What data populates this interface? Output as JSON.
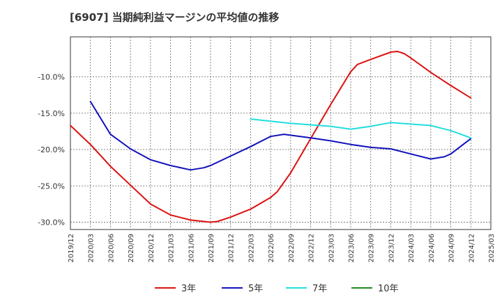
{
  "chart_data": {
    "type": "line",
    "title": "[6907]  当期純利益マージンの平均値の推移",
    "xlabel": "",
    "ylabel": "",
    "x_ticks": [
      "2019/12",
      "2020/03",
      "2020/06",
      "2020/09",
      "2020/12",
      "2021/03",
      "2021/06",
      "2021/09",
      "2021/12",
      "2022/03",
      "2022/06",
      "2022/09",
      "2022/12",
      "2023/03",
      "2023/06",
      "2023/09",
      "2023/12",
      "2024/03",
      "2024/06",
      "2024/09",
      "2024/12",
      "2025/03"
    ],
    "y_ticks": [
      -30.0,
      -25.0,
      -20.0,
      -15.0,
      -10.0
    ],
    "y_tick_labels": [
      "-30.0%",
      "-25.0%",
      "-20.0%",
      "-15.0%",
      "-10.0%"
    ],
    "ylim": [
      -31.0,
      -4.5
    ],
    "grid": true,
    "legend_position": "bottom",
    "series": [
      {
        "name": "3年",
        "color": "#dd1111",
        "points": [
          [
            "2019/12",
            -16.7
          ],
          [
            "2020/03",
            -19.3
          ],
          [
            "2020/06",
            -22.3
          ],
          [
            "2020/09",
            -24.9
          ],
          [
            "2020/12",
            -27.5
          ],
          [
            "2021/03",
            -29.0
          ],
          [
            "2021/06",
            -29.7
          ],
          [
            "2021/09",
            -30.0
          ],
          [
            "2021/10",
            -29.9
          ],
          [
            "2021/12",
            -29.3
          ],
          [
            "2022/03",
            -28.2
          ],
          [
            "2022/06",
            -26.6
          ],
          [
            "2022/07",
            -25.8
          ],
          [
            "2022/09",
            -23.2
          ],
          [
            "2022/12",
            -18.5
          ],
          [
            "2023/03",
            -13.8
          ],
          [
            "2023/06",
            -9.3
          ],
          [
            "2023/07",
            -8.3
          ],
          [
            "2023/09",
            -7.6
          ],
          [
            "2023/12",
            -6.6
          ],
          [
            "2024/01",
            -6.5
          ],
          [
            "2024/02",
            -6.8
          ],
          [
            "2024/03",
            -7.4
          ],
          [
            "2024/06",
            -9.4
          ],
          [
            "2024/09",
            -11.2
          ],
          [
            "2024/12",
            -12.9
          ]
        ]
      },
      {
        "name": "5年",
        "color": "#1111bb",
        "points": [
          [
            "2020/03",
            -13.4
          ],
          [
            "2020/06",
            -17.9
          ],
          [
            "2020/09",
            -19.9
          ],
          [
            "2020/12",
            -21.4
          ],
          [
            "2021/03",
            -22.2
          ],
          [
            "2021/06",
            -22.8
          ],
          [
            "2021/08",
            -22.5
          ],
          [
            "2021/09",
            -22.2
          ],
          [
            "2021/12",
            -20.9
          ],
          [
            "2022/03",
            -19.6
          ],
          [
            "2022/06",
            -18.2
          ],
          [
            "2022/08",
            -17.9
          ],
          [
            "2022/12",
            -18.4
          ],
          [
            "2023/03",
            -18.8
          ],
          [
            "2023/06",
            -19.3
          ],
          [
            "2023/09",
            -19.7
          ],
          [
            "2023/12",
            -19.9
          ],
          [
            "2024/03",
            -20.6
          ],
          [
            "2024/06",
            -21.3
          ],
          [
            "2024/08",
            -21.0
          ],
          [
            "2024/09",
            -20.6
          ],
          [
            "2024/12",
            -18.5
          ]
        ]
      },
      {
        "name": "7年",
        "color": "#22dddd",
        "points": [
          [
            "2022/03",
            -15.8
          ],
          [
            "2022/06",
            -16.1
          ],
          [
            "2022/09",
            -16.4
          ],
          [
            "2022/12",
            -16.6
          ],
          [
            "2023/03",
            -16.8
          ],
          [
            "2023/06",
            -17.2
          ],
          [
            "2023/09",
            -16.8
          ],
          [
            "2023/12",
            -16.3
          ],
          [
            "2024/03",
            -16.5
          ],
          [
            "2024/06",
            -16.7
          ],
          [
            "2024/09",
            -17.4
          ],
          [
            "2024/12",
            -18.4
          ]
        ]
      },
      {
        "name": "10年",
        "color": "#228822",
        "points": []
      }
    ]
  }
}
